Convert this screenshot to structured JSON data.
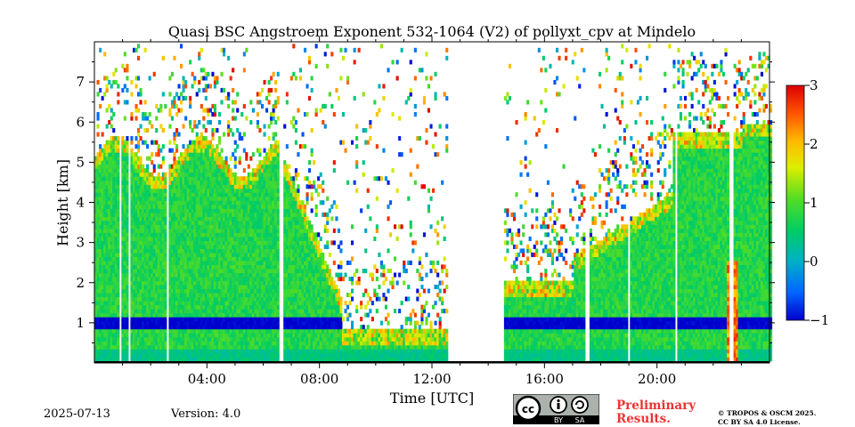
{
  "chart_data": {
    "type": "heatmap",
    "title": "Quasi BSC Angstroem Exponent 532-1064 (V2) of pollyxt_cpv at Mindelo",
    "xlabel": "Time [UTC]",
    "ylabel": "Height [km]",
    "xlim_hours": [
      0,
      24
    ],
    "ylim_km": [
      0,
      8
    ],
    "x_ticks": [
      {
        "hour": 4,
        "label": "04:00"
      },
      {
        "hour": 8,
        "label": "08:00"
      },
      {
        "hour": 12,
        "label": "12:00"
      },
      {
        "hour": 16,
        "label": "16:00"
      },
      {
        "hour": 20,
        "label": "20:00"
      }
    ],
    "y_ticks": [
      {
        "value": 1,
        "label": "1"
      },
      {
        "value": 2,
        "label": "2"
      },
      {
        "value": 3,
        "label": "3"
      },
      {
        "value": 4,
        "label": "4"
      },
      {
        "value": 5,
        "label": "5"
      },
      {
        "value": 6,
        "label": "6"
      },
      {
        "value": 7,
        "label": "7"
      }
    ],
    "colorbar": {
      "range": [
        -1,
        3
      ],
      "ticks": [
        {
          "value": 3,
          "label": "3"
        },
        {
          "value": 2,
          "label": "2"
        },
        {
          "value": 1,
          "label": "1"
        },
        {
          "value": 0,
          "label": "0"
        },
        {
          "value": -1,
          "label": "−1"
        }
      ],
      "colormap": "jet"
    },
    "field_description": {
      "data_gap_hours": [
        12.5,
        14.5
      ],
      "dominant_value": 0.8
    }
  },
  "footer": {
    "date": "2025-07-13",
    "version": "Version: 4.0",
    "preliminary_line1": "Preliminary",
    "preliminary_line2": "Results.",
    "copyright_line1": "© TROPOS & OSCM 2025.",
    "copyright_line2": "CC BY SA 4.0 License.",
    "cc_badge": {
      "icon": "cc-by-sa-license-icon",
      "text_by": "BY",
      "text_sa": "SA",
      "text_cc": "cc"
    }
  }
}
